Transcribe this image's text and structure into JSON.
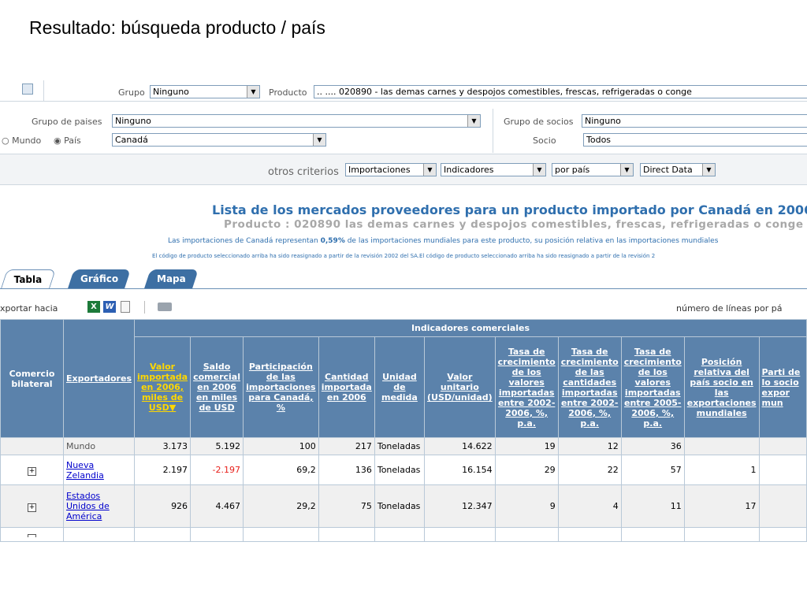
{
  "slide": {
    "title": "Resultado: búsqueda producto / país"
  },
  "filters": {
    "grupo_label": "Grupo",
    "grupo_value": "Ninguno",
    "producto_label": "Producto",
    "producto_value": ".. .... 020890 - las demas carnes y despojos comestibles, frescas, refrigeradas o conge",
    "grupo_paises_label": "Grupo de paises",
    "grupo_paises_value": "Ninguno",
    "mundo_label": "Mundo",
    "pais_label": "País",
    "pais_value": "Canadá",
    "grupo_socios_label": "Grupo de socios",
    "grupo_socios_value": "Ninguno",
    "socio_label": "Socio",
    "socio_value": "Todos",
    "otros_label": "otros criterios",
    "otros_1": "Importaciones",
    "otros_2": "Indicadores",
    "otros_3": "por país",
    "otros_4": "Direct Data"
  },
  "report": {
    "title": "Lista de los mercados proveedores para un producto importado por Canadá en 2006",
    "subtitle": "Producto : 020890 las demas carnes y despojos comestibles, frescas, refrigeradas o conge",
    "note_pre": "Las importaciones de Canadá representan ",
    "note_pct": "0,59%",
    "note_post": " de las importaciones mundiales para este producto, su posición relativa en las importaciones mundiales",
    "note_small": "El código de producto seleccionado arriba ha sido reasignado a partir de la revisión 2002 del SA.El código de producto seleccionado arriba ha sido reasignado a partir de la revisión 2"
  },
  "tabs": [
    "Tabla",
    "Gráfico",
    "Mapa"
  ],
  "toolbar": {
    "export_label": "xportar hacia",
    "lines_label": "número de líneas por pá"
  },
  "table": {
    "group_header": "Indicadores comerciales",
    "columns": [
      "Comercio bilateral",
      "Exportadores",
      "Valor importada en 2006, miles de USD▼",
      "Saldo comercial en 2006 en miles de USD",
      "Participación de las importaciones para Canadá, %",
      "Cantidad importada en 2006",
      "Unidad de medida",
      "Valor unitario (USD/unidad)",
      "Tasa de crecimiento de los valores importadas entre 2002-2006, %, p.a.",
      "Tasa de crecimiento de las cantidades importadas entre 2002-2006, %, p.a.",
      "Tasa de crecimiento de los valores importadas entre 2005-2006, %, p.a.",
      "Posición relativa del país socio en las exportaciones mundiales",
      "Parti de lo socio expor mun"
    ],
    "rows": [
      {
        "bilateral": "",
        "name": "Mundo",
        "link": false,
        "v": [
          "3.173",
          "5.192",
          "100",
          "217",
          "Toneladas",
          "14.622",
          "19",
          "12",
          "36",
          ""
        ]
      },
      {
        "bilateral": "+",
        "name": "Nueva Zelandia",
        "link": true,
        "v": [
          "2.197",
          "-2.197",
          "69,2",
          "136",
          "Toneladas",
          "16.154",
          "29",
          "22",
          "57",
          "1"
        ]
      },
      {
        "bilateral": "+",
        "name": "Estados Unidos de América",
        "link": true,
        "v": [
          "926",
          "4.467",
          "29,2",
          "75",
          "Toneladas",
          "12.347",
          "9",
          "4",
          "11",
          "17"
        ]
      }
    ]
  },
  "colors": {
    "header_bg": "#5b82ab",
    "title_blue": "#2f6fae",
    "negative": "#e8201b",
    "sorted_header": "#ffd700"
  }
}
